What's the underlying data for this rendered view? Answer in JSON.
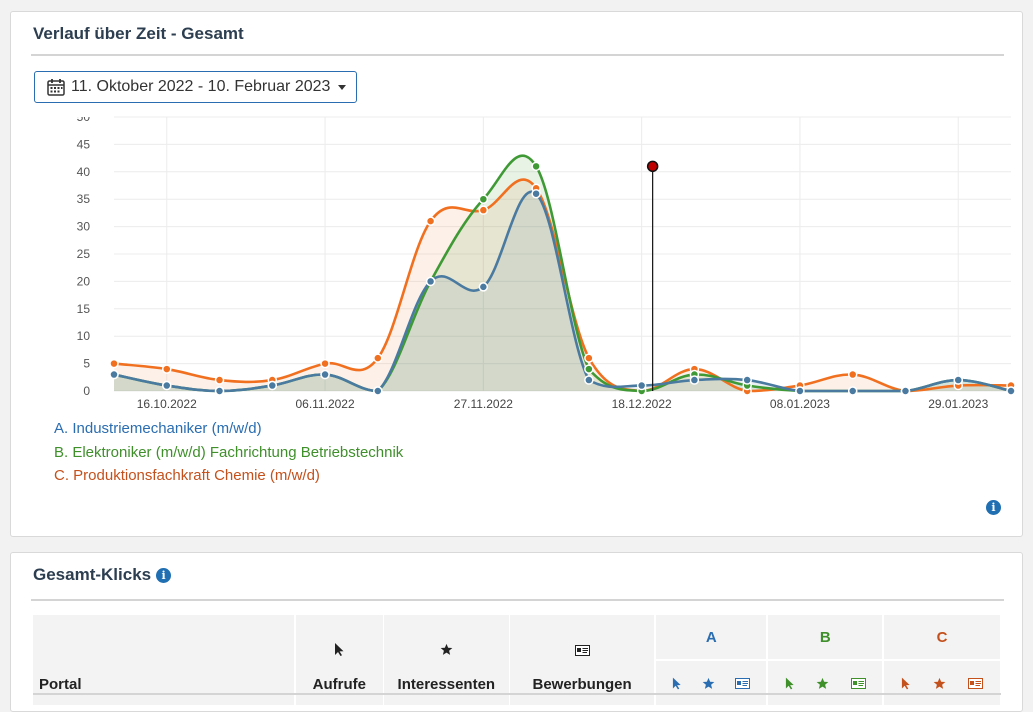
{
  "panel1": {
    "title": "Verlauf über Zeit - Gesamt",
    "date_range": "11. Oktober 2022 - 10. Februar 2023"
  },
  "legend": [
    {
      "text": "A. Industriemechaniker (m/w/d)",
      "color": "#2a6db0"
    },
    {
      "text": "B. Elektroniker (m/w/d)  Fachrichtung Betriebstechnik",
      "color": "#3f8f2b"
    },
    {
      "text": "C. Produktionsfachkraft Chemie (m/w/d)",
      "color": "#c4511c"
    }
  ],
  "chart_data": {
    "type": "area",
    "y_ticks": [
      "0",
      "5",
      "10",
      "15",
      "20",
      "25",
      "30",
      "35",
      "40",
      "45",
      "50"
    ],
    "ylim": [
      0,
      50
    ],
    "x_tick_labels": [
      "16.10.2022",
      "06.11.2022",
      "27.11.2022",
      "18.12.2022",
      "08.01.2023",
      "29.01.2023"
    ],
    "x": [
      "09.10.2022",
      "16.10.2022",
      "23.10.2022",
      "30.10.2022",
      "06.11.2022",
      "13.11.2022",
      "20.11.2022",
      "27.11.2022",
      "04.12.2022",
      "11.12.2022",
      "18.12.2022",
      "25.12.2022",
      "01.01.2023",
      "08.01.2023",
      "15.01.2023",
      "22.01.2023",
      "29.01.2023",
      "05.02.2023"
    ],
    "series": [
      {
        "name": "A",
        "color": "#4a7aa0",
        "values": [
          3,
          1,
          0,
          1,
          3,
          0,
          20,
          19,
          36,
          2,
          1,
          2,
          2,
          0,
          0,
          0,
          2,
          0
        ]
      },
      {
        "name": "B",
        "color": "#3f9a35",
        "values": [
          3,
          1,
          0,
          1,
          3,
          0,
          20,
          35,
          41,
          4,
          0,
          3,
          1,
          0,
          0,
          0,
          2,
          0
        ]
      },
      {
        "name": "C",
        "color": "#f07020",
        "values": [
          5,
          4,
          2,
          2,
          5,
          6,
          31,
          33,
          37,
          6,
          0,
          4,
          0,
          1,
          3,
          0,
          1,
          1
        ]
      }
    ],
    "marker": {
      "x": "18.12.2022",
      "y": 41
    }
  },
  "panel2": {
    "title": "Gesamt-Klicks",
    "columns": {
      "portal": "Portal",
      "aufrufe": "Aufrufe",
      "interessenten": "Interessenten",
      "bewerbungen": "Bewerbungen"
    },
    "groups": [
      {
        "label": "A",
        "color": "#2a6db0"
      },
      {
        "label": "B",
        "color": "#3f8f2b"
      },
      {
        "label": "C",
        "color": "#c4511c"
      }
    ]
  },
  "icons": {
    "calendar": "calendar-icon",
    "info": "info-icon",
    "cursor": "cursor-icon",
    "star": "star-icon",
    "id_card": "id-card-icon"
  }
}
